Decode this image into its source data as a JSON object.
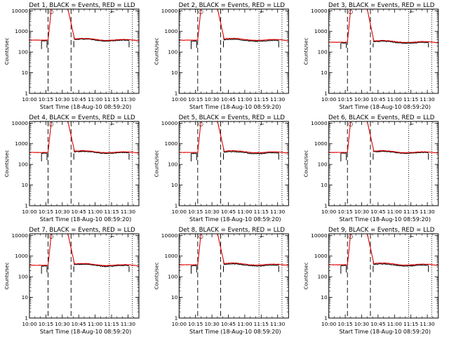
{
  "colors": {
    "background": "#ffffff",
    "events": "#000000",
    "lld": "#e00000",
    "axes": "#000000"
  },
  "chart_data": {
    "type": "line",
    "layout": "3x3 grid",
    "y_scale": "log",
    "ylim": [
      1,
      12000
    ],
    "xlim": [
      "10:00",
      "11:40"
    ],
    "x_ticks": [
      "10:00",
      "10:15",
      "10:30",
      "10:45",
      "11:00",
      "11:15",
      "11:30"
    ],
    "y_ticks": [
      "1",
      "10",
      "100",
      "1000",
      "10000"
    ],
    "xlabel": "Start Time (18-Aug-10 08:59:20)",
    "ylabel": "Counts/sec",
    "marker_glyph": "⌐",
    "legend_series": [
      {
        "name": "Events",
        "color": "#000000"
      },
      {
        "name": "LLD",
        "color": "#e00000"
      }
    ],
    "vertical_markers": [
      {
        "time": "10:17",
        "style": "long-dash"
      },
      {
        "time": "10:38",
        "style": "long-dash"
      },
      {
        "time": "11:13",
        "style": "dotted"
      },
      {
        "time": "11:34",
        "style": "dotted"
      }
    ],
    "panels": [
      {
        "title": "Det 1, BLACK = Events, RED = LLD",
        "baseline": 380,
        "events_ratio": 0.93,
        "plateau": 13000
      },
      {
        "title": "Det 2, BLACK = Events, RED = LLD",
        "baseline": 380,
        "events_ratio": 0.9,
        "plateau": 13000
      },
      {
        "title": "Det 3, BLACK = Events, RED = LLD",
        "baseline": 300,
        "events_ratio": 0.92,
        "plateau": 13000
      },
      {
        "title": "Det 4, BLACK = Events, RED = LLD",
        "baseline": 380,
        "events_ratio": 0.93,
        "plateau": 13000
      },
      {
        "title": "Det 5, BLACK = Events, RED = LLD",
        "baseline": 380,
        "events_ratio": 0.9,
        "plateau": 13000
      },
      {
        "title": "Det 6, BLACK = Events, RED = LLD",
        "baseline": 380,
        "events_ratio": 0.93,
        "plateau": 13000
      },
      {
        "title": "Det 7, BLACK = Events, RED = LLD",
        "baseline": 360,
        "events_ratio": 0.92,
        "plateau": 13000
      },
      {
        "title": "Det 8, BLACK = Events, RED = LLD",
        "baseline": 380,
        "events_ratio": 0.9,
        "plateau": 13000
      },
      {
        "title": "Det 9, BLACK = Events, RED = LLD",
        "baseline": 380,
        "events_ratio": 0.9,
        "plateau": 13000
      }
    ]
  }
}
